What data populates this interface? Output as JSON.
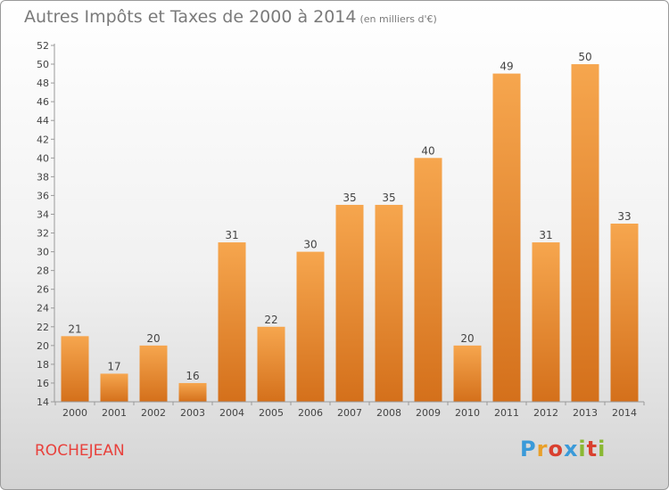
{
  "header": {
    "title": "Autres Impôts et Taxes de 2000 à 2014",
    "subtitle": "(en milliers d'€)"
  },
  "footer": {
    "town": "ROCHEJEAN",
    "logo": "Proxiti"
  },
  "colors": {
    "bar_light": "#f6a64e",
    "bar_dark": "#d4701b",
    "town": "#e8413c"
  },
  "chart_data": {
    "type": "bar",
    "title": "Autres Impôts et Taxes de 2000 à 2014",
    "subtitle": "(en milliers d'€)",
    "categories": [
      "2000",
      "2001",
      "2002",
      "2003",
      "2004",
      "2005",
      "2006",
      "2007",
      "2008",
      "2009",
      "2010",
      "2011",
      "2012",
      "2013",
      "2014"
    ],
    "values": [
      21,
      17,
      20,
      16,
      31,
      22,
      30,
      35,
      35,
      40,
      20,
      49,
      31,
      50,
      33
    ],
    "ylim": [
      14,
      52
    ],
    "yticks": [
      14,
      16,
      18,
      20,
      22,
      24,
      26,
      28,
      30,
      32,
      34,
      36,
      38,
      40,
      42,
      44,
      46,
      48,
      50,
      52
    ],
    "grid": false,
    "xlabel": "",
    "ylabel": ""
  }
}
